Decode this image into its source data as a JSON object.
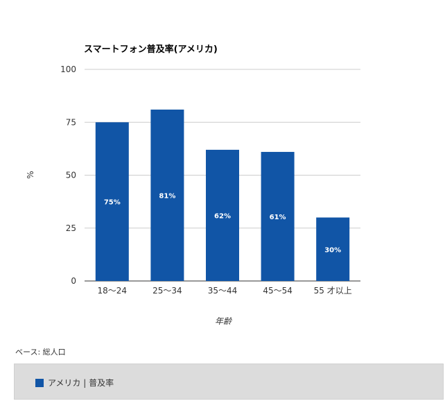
{
  "chart_data": {
    "type": "bar",
    "title": "スマートフォン普及率(アメリカ)",
    "xlabel": "年齢",
    "ylabel": "%",
    "categories": [
      "18〜24",
      "25〜34",
      "35〜44",
      "45〜54",
      "55 才以上"
    ],
    "series": [
      {
        "name": "アメリカ | 普及率",
        "values": [
          75,
          81,
          62,
          61,
          30
        ],
        "data_labels": [
          "75%",
          "81%",
          "62%",
          "61%",
          "30%"
        ]
      }
    ],
    "ylim": [
      0,
      100
    ],
    "yticks": [
      0,
      25,
      50,
      75,
      100
    ],
    "grid": true,
    "legend_position": "bottom",
    "colors": {
      "bar": "#1155a6",
      "grid": "#cccccc",
      "axis": "#333333",
      "data_label": "#ffffff"
    }
  },
  "footnote": "ベース: 総人口"
}
